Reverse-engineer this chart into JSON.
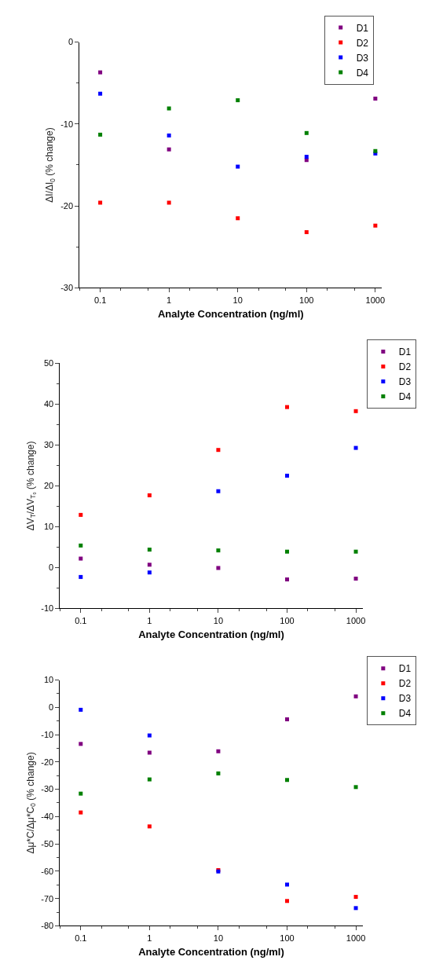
{
  "chart_data": [
    {
      "type": "scatter",
      "x": [
        0.1,
        1,
        10,
        100,
        1000
      ],
      "xlim": [
        0.05,
        1250
      ],
      "xticks": [
        0.1,
        1,
        10,
        100,
        1000
      ],
      "ylim": [
        -30,
        0
      ],
      "yticks": [
        -30,
        -20,
        -10,
        0
      ],
      "log": "x",
      "grid": false,
      "marker": "square",
      "legend": "top right",
      "xlabel": "Analyte Concentration (ng/ml)",
      "ylabel": "ΔI/ΔI$_{0}$ (% change)",
      "series": [
        {
          "name": "D1",
          "color": "#800080",
          "values": [
            -3.7,
            -13.1,
            null,
            -14.4,
            -6.9
          ]
        },
        {
          "name": "D2",
          "color": "#ff0000",
          "values": [
            -19.6,
            -19.6,
            -21.5,
            -23.2,
            -22.4
          ]
        },
        {
          "name": "D3",
          "color": "#0000ff",
          "values": [
            -6.3,
            -11.4,
            -15.2,
            -14.0,
            -13.6
          ]
        },
        {
          "name": "D4",
          "color": "#008000",
          "values": [
            -11.3,
            -8.1,
            -7.1,
            -11.1,
            -13.3
          ]
        }
      ]
    },
    {
      "type": "scatter",
      "x": [
        0.1,
        1,
        10,
        100,
        1000
      ],
      "xlim": [
        0.05,
        1250
      ],
      "xticks": [
        0.1,
        1,
        10,
        100,
        1000
      ],
      "ylim": [
        -10,
        50
      ],
      "yticks": [
        -10,
        0,
        10,
        20,
        30,
        40,
        50
      ],
      "log": "x",
      "grid": false,
      "marker": "square",
      "legend": "right",
      "xlabel": "Analyte Concentration (ng/ml)",
      "ylabel": "ΔV$_{T}$/ΔV$_{T₀}$ (% change)",
      "series": [
        {
          "name": "D1",
          "color": "#800080",
          "values": [
            2.2,
            0.7,
            -0.1,
            -2.9,
            -2.7
          ]
        },
        {
          "name": "D2",
          "color": "#ff0000",
          "values": [
            12.9,
            17.7,
            28.8,
            39.3,
            38.3
          ]
        },
        {
          "name": "D3",
          "color": "#0000ff",
          "values": [
            -2.3,
            -1.2,
            18.7,
            22.5,
            29.3
          ]
        },
        {
          "name": "D4",
          "color": "#008000",
          "values": [
            5.4,
            4.4,
            4.2,
            3.9,
            3.9
          ]
        }
      ]
    },
    {
      "type": "scatter",
      "x": [
        0.1,
        1,
        10,
        100,
        1000
      ],
      "xlim": [
        0.05,
        1250
      ],
      "xticks": [
        0.1,
        1,
        10,
        100,
        1000
      ],
      "ylim": [
        -80,
        10
      ],
      "yticks": [
        -80,
        -70,
        -60,
        -50,
        -40,
        -30,
        -20,
        -10,
        0,
        10
      ],
      "log": "x",
      "grid": false,
      "marker": "square",
      "legend": "right",
      "xlabel": "Analyte Concentration (ng/ml)",
      "ylabel": "Δμ*C/Δμ*C$_{0}$ (% change)",
      "series": [
        {
          "name": "D1",
          "color": "#800080",
          "values": [
            -13.4,
            -16.6,
            -16.1,
            -4.4,
            4.0
          ]
        },
        {
          "name": "D2",
          "color": "#ff0000",
          "values": [
            -38.5,
            -43.6,
            -59.6,
            -70.9,
            -69.4
          ]
        },
        {
          "name": "D3",
          "color": "#0000ff",
          "values": [
            -0.9,
            -10.3,
            -60.1,
            -64.9,
            -73.5
          ]
        },
        {
          "name": "D4",
          "color": "#008000",
          "values": [
            -31.6,
            -26.4,
            -24.2,
            -26.6,
            -29.2
          ]
        }
      ]
    }
  ]
}
